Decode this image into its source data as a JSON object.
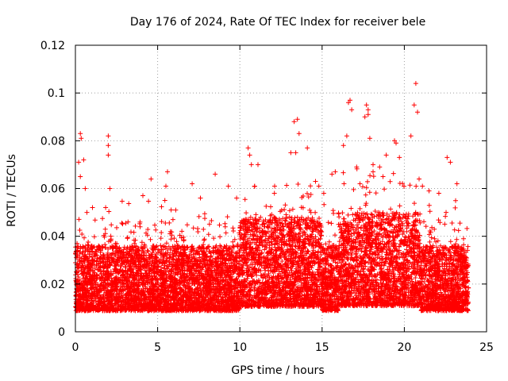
{
  "chart_data": {
    "type": "scatter",
    "title": "Day 176 of 2024, Rate Of TEC Index for receiver bele",
    "xlabel": "GPS time / hours",
    "ylabel": "ROTI / TECUs",
    "xlim": [
      0,
      25
    ],
    "ylim": [
      0,
      0.12
    ],
    "xticks": [
      0,
      5,
      10,
      15,
      20,
      25
    ],
    "yticks": [
      0,
      0.02,
      0.04,
      0.06,
      0.08,
      0.1,
      0.12
    ],
    "xtick_labels": [
      "0",
      "5",
      "10",
      "15",
      "20",
      "25"
    ],
    "ytick_labels": [
      "0",
      "0.02",
      "0.04",
      "0.06",
      "0.08",
      "0.1",
      "0.12"
    ],
    "grid": true,
    "marker": "+",
    "series_color": "#ff0000",
    "hour_range": [
      0,
      23.9
    ],
    "series": [
      {
        "name": "ROTI",
        "points": [
          [
            0.1,
            0.037
          ],
          [
            0.1,
            0.012
          ],
          [
            0.2,
            0.071
          ],
          [
            0.3,
            0.065
          ],
          [
            0.3,
            0.083
          ],
          [
            0.35,
            0.081
          ],
          [
            0.5,
            0.072
          ],
          [
            0.6,
            0.06
          ],
          [
            0.7,
            0.05
          ],
          [
            2.0,
            0.082
          ],
          [
            2.0,
            0.078
          ],
          [
            2.0,
            0.074
          ],
          [
            2.1,
            0.06
          ],
          [
            3.2,
            0.046
          ],
          [
            4.1,
            0.057
          ],
          [
            4.6,
            0.064
          ],
          [
            5.6,
            0.067
          ],
          [
            5.5,
            0.061
          ],
          [
            6.1,
            0.051
          ],
          [
            7.1,
            0.062
          ],
          [
            7.6,
            0.056
          ],
          [
            8.5,
            0.066
          ],
          [
            9.3,
            0.061
          ],
          [
            9.8,
            0.056
          ],
          [
            10.5,
            0.077
          ],
          [
            10.6,
            0.074
          ],
          [
            10.7,
            0.07
          ],
          [
            11.1,
            0.07
          ],
          [
            10.9,
            0.061
          ],
          [
            12.1,
            0.058
          ],
          [
            13.1,
            0.075
          ],
          [
            13.3,
            0.088
          ],
          [
            13.5,
            0.089
          ],
          [
            13.6,
            0.083
          ],
          [
            13.4,
            0.075
          ],
          [
            14.1,
            0.077
          ],
          [
            14.6,
            0.063
          ],
          [
            14.8,
            0.061
          ],
          [
            15.1,
            0.058
          ],
          [
            15.6,
            0.066
          ],
          [
            15.8,
            0.067
          ],
          [
            16.3,
            0.078
          ],
          [
            16.5,
            0.082
          ],
          [
            16.6,
            0.096
          ],
          [
            16.7,
            0.097
          ],
          [
            16.8,
            0.093
          ],
          [
            17.1,
            0.069
          ],
          [
            17.3,
            0.062
          ],
          [
            17.6,
            0.09
          ],
          [
            17.7,
            0.095
          ],
          [
            17.8,
            0.093
          ],
          [
            17.8,
            0.091
          ],
          [
            17.9,
            0.081
          ],
          [
            18.1,
            0.07
          ],
          [
            18.5,
            0.069
          ],
          [
            18.7,
            0.065
          ],
          [
            18.9,
            0.074
          ],
          [
            19.4,
            0.08
          ],
          [
            19.5,
            0.079
          ],
          [
            19.7,
            0.073
          ],
          [
            20.4,
            0.082
          ],
          [
            20.6,
            0.095
          ],
          [
            20.7,
            0.104
          ],
          [
            20.8,
            0.092
          ],
          [
            20.9,
            0.064
          ],
          [
            21.1,
            0.061
          ],
          [
            21.5,
            0.059
          ],
          [
            22.1,
            0.058
          ],
          [
            22.6,
            0.073
          ],
          [
            22.8,
            0.071
          ],
          [
            23.2,
            0.062
          ],
          [
            23.6,
            0.039
          ],
          [
            23.8,
            0.024
          ]
        ]
      }
    ]
  }
}
